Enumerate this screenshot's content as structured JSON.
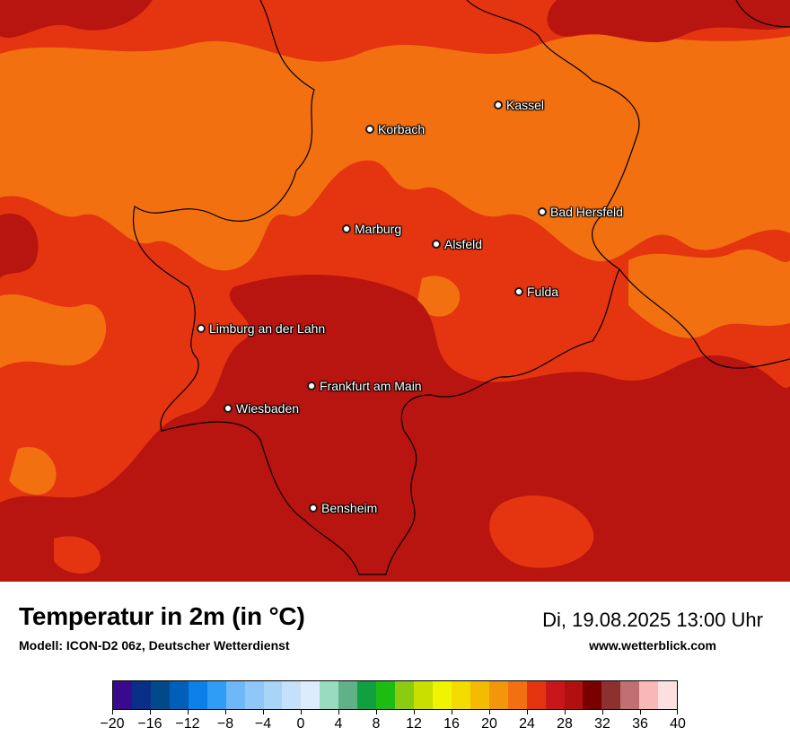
{
  "map": {
    "colors": {
      "hot_dark": "#b81410",
      "hot_mid": "#e53410",
      "warm": "#f27010",
      "border": "#000000"
    },
    "cities": [
      {
        "name": "Kassel"
      },
      {
        "name": "Korbach"
      },
      {
        "name": "Bad Hersfeld"
      },
      {
        "name": "Marburg"
      },
      {
        "name": "Alsfeld"
      },
      {
        "name": "Fulda"
      },
      {
        "name": "Limburg an der Lahn"
      },
      {
        "name": "Frankfurt am Main"
      },
      {
        "name": "Wiesbaden"
      },
      {
        "name": "Bensheim"
      }
    ]
  },
  "footer": {
    "title": "Temperatur in 2m (in °C)",
    "subtitle": "Modell: ICON-D2 06z, Deutscher Wetterdienst",
    "datetime": "Di, 19.08.2025 13:00 Uhr",
    "website": "www.wetterblick.com"
  },
  "colorbar": {
    "range": [
      -20,
      40
    ],
    "step": 2,
    "tick_labels": [
      "−20",
      "−16",
      "−12",
      "−8",
      "−4",
      "0",
      "4",
      "8",
      "12",
      "16",
      "20",
      "24",
      "28",
      "32",
      "36",
      "40"
    ],
    "colors": [
      "#3a0a8c",
      "#0a2f88",
      "#004a8c",
      "#005fb8",
      "#0a80e8",
      "#2f9cf5",
      "#6fb8f8",
      "#8fc8f8",
      "#a8d4f8",
      "#c4e0fa",
      "#dcecfc",
      "#98dcc0",
      "#60b088",
      "#10a040",
      "#1cbc14",
      "#8ccc10",
      "#c8e000",
      "#f0f400",
      "#f4dc00",
      "#f4bc00",
      "#f2960a",
      "#f27010",
      "#e53410",
      "#c8161a",
      "#b01010",
      "#7a0000",
      "#8c3030",
      "#c07070",
      "#f8b8b8",
      "#fce0e0"
    ]
  }
}
